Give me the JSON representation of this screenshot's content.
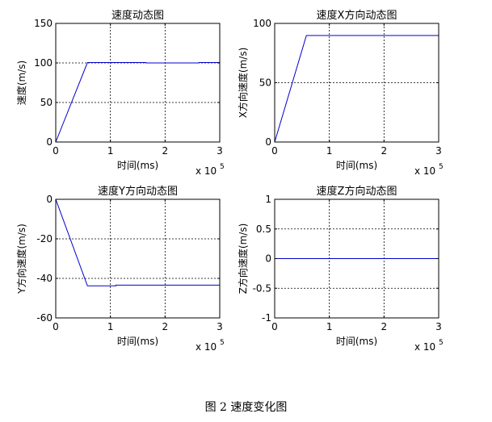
{
  "figure_caption": "图 2  速度变化图",
  "chart_data": [
    {
      "type": "line",
      "title": "速度动态图",
      "xlabel": "时间(ms)",
      "ylabel": "速度(m/s)",
      "x_multiplier_label": "x 10",
      "x_multiplier_exp": "5",
      "xlim": [
        0,
        3
      ],
      "ylim": [
        0,
        150
      ],
      "xticks": [
        0,
        1,
        2,
        3
      ],
      "xtick_labels": [
        "0",
        "1",
        "2",
        "3"
      ],
      "yticks": [
        0,
        50,
        100,
        150
      ],
      "ytick_labels": [
        "0",
        "50",
        "100",
        "150"
      ],
      "grid": true,
      "series": [
        {
          "color": "#0000cc",
          "x": [
            0,
            0.58,
            1.65,
            1.65,
            2.62,
            2.62,
            3.0
          ],
          "y": [
            0,
            100.5,
            100.5,
            100.0,
            100.0,
            100.5,
            100.5
          ]
        }
      ]
    },
    {
      "type": "line",
      "title": "速度X方向动态图",
      "xlabel": "时间(ms)",
      "ylabel": "X方向速度(m/s)",
      "x_multiplier_label": "x 10",
      "x_multiplier_exp": "5",
      "xlim": [
        0,
        3
      ],
      "ylim": [
        0,
        100
      ],
      "xticks": [
        0,
        1,
        2,
        3
      ],
      "xtick_labels": [
        "0",
        "1",
        "2",
        "3"
      ],
      "yticks": [
        0,
        50,
        100
      ],
      "ytick_labels": [
        "0",
        "50",
        "100"
      ],
      "grid": true,
      "series": [
        {
          "color": "#0000cc",
          "x": [
            0,
            0.58,
            3.0
          ],
          "y": [
            0,
            89.8,
            89.8
          ]
        }
      ]
    },
    {
      "type": "line",
      "title": "速度Y方向动态图",
      "xlabel": "时间(ms)",
      "ylabel": "Y方向速度(m/s)",
      "x_multiplier_label": "x 10",
      "x_multiplier_exp": "5",
      "xlim": [
        0,
        3
      ],
      "ylim": [
        -60,
        0
      ],
      "xticks": [
        0,
        1,
        2,
        3
      ],
      "xtick_labels": [
        "0",
        "1",
        "2",
        "3"
      ],
      "yticks": [
        -60,
        -40,
        -20,
        0
      ],
      "ytick_labels": [
        "-60",
        "-40",
        "-20",
        "0"
      ],
      "grid": true,
      "series": [
        {
          "color": "#0000cc",
          "x": [
            0,
            0.58,
            1.1,
            1.1,
            3.0
          ],
          "y": [
            0,
            -43.8,
            -43.8,
            -43.4,
            -43.4
          ]
        }
      ]
    },
    {
      "type": "line",
      "title": "速度Z方向动态图",
      "xlabel": "时间(ms)",
      "ylabel": "Z方向速度(m/s)",
      "x_multiplier_label": "x 10",
      "x_multiplier_exp": "5",
      "xlim": [
        0,
        3
      ],
      "ylim": [
        -1,
        1
      ],
      "xticks": [
        0,
        1,
        2,
        3
      ],
      "xtick_labels": [
        "0",
        "1",
        "2",
        "3"
      ],
      "yticks": [
        -1,
        -0.5,
        0,
        0.5,
        1
      ],
      "ytick_labels": [
        "-1",
        "-0.5",
        "0",
        "0.5",
        "1"
      ],
      "grid": true,
      "series": [
        {
          "color": "#0000cc",
          "x": [
            0,
            3.0
          ],
          "y": [
            0,
            0
          ]
        }
      ]
    }
  ]
}
